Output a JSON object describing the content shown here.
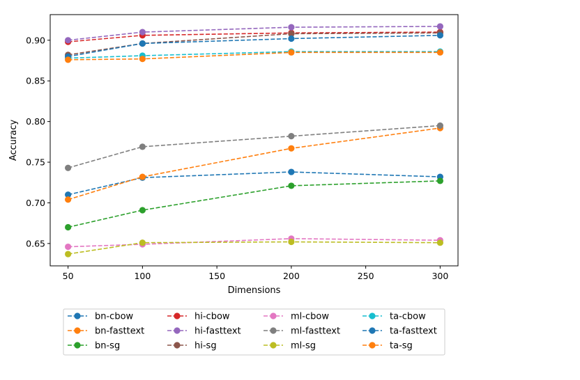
{
  "chart_data": {
    "type": "line",
    "title": "",
    "xlabel": "Dimensions",
    "ylabel": "Accuracy",
    "xlim": [
      38,
      312
    ],
    "ylim": [
      0.6225,
      0.9315
    ],
    "xticks": [
      50,
      100,
      150,
      200,
      250,
      300
    ],
    "yticks": [
      0.65,
      0.7,
      0.75,
      0.8,
      0.85,
      0.9
    ],
    "ytick_labels": [
      "0.65",
      "0.70",
      "0.75",
      "0.80",
      "0.85",
      "0.90"
    ],
    "grid": false,
    "legend_position": "below",
    "x": [
      50,
      100,
      200,
      300
    ],
    "series": [
      {
        "name": "bn-cbow",
        "color": "#1f77b4",
        "values": [
          0.71,
          0.731,
          0.738,
          0.732
        ]
      },
      {
        "name": "bn-fasttext",
        "color": "#ff7f0e",
        "values": [
          0.704,
          0.732,
          0.767,
          0.792
        ]
      },
      {
        "name": "bn-sg",
        "color": "#2ca02c",
        "values": [
          0.67,
          0.691,
          0.721,
          0.727
        ]
      },
      {
        "name": "hi-cbow",
        "color": "#d62728",
        "values": [
          0.898,
          0.906,
          0.909,
          0.91
        ]
      },
      {
        "name": "hi-fasttext",
        "color": "#9467bd",
        "values": [
          0.9,
          0.91,
          0.916,
          0.917
        ]
      },
      {
        "name": "hi-sg",
        "color": "#8c564b",
        "values": [
          0.882,
          0.896,
          0.908,
          0.909
        ]
      },
      {
        "name": "ml-cbow",
        "color": "#e377c2",
        "values": [
          0.646,
          0.649,
          0.656,
          0.654
        ]
      },
      {
        "name": "ml-fasttext",
        "color": "#7f7f7f",
        "values": [
          0.743,
          0.769,
          0.782,
          0.795
        ]
      },
      {
        "name": "ml-sg",
        "color": "#bcbd22",
        "values": [
          0.637,
          0.651,
          0.652,
          0.651
        ]
      },
      {
        "name": "ta-cbow",
        "color": "#17becf",
        "values": [
          0.878,
          0.881,
          0.886,
          0.886
        ]
      },
      {
        "name": "ta-fasttext",
        "color": "#1f77b4",
        "values": [
          0.88,
          0.896,
          0.902,
          0.906
        ]
      },
      {
        "name": "ta-sg",
        "color": "#ff7f0e",
        "values": [
          0.876,
          0.877,
          0.885,
          0.885
        ]
      }
    ]
  }
}
